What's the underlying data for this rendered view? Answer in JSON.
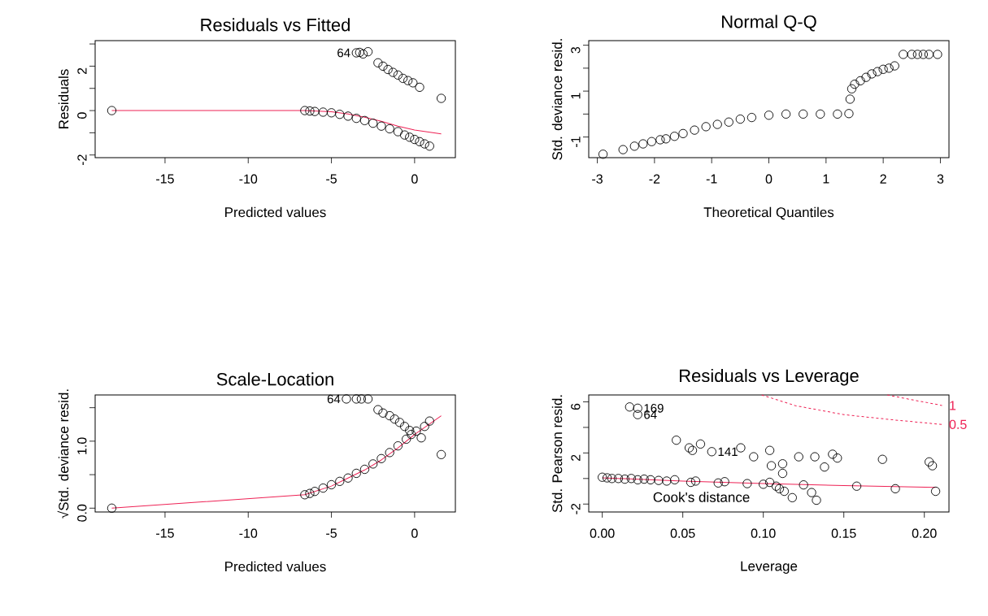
{
  "chart_data": [
    {
      "type": "scatter",
      "title": "Residuals vs Fitted",
      "xlabel": "Predicted values",
      "ylabel": "Residuals",
      "xlim": [
        -19.2,
        2.45
      ],
      "ylim": [
        -2.12,
        3.15
      ],
      "xticks": [
        -15,
        -10,
        -5,
        0
      ],
      "yticks": [
        -2,
        {
          "value": -1,
          "label": null
        },
        0,
        {
          "value": 1,
          "label": null
        },
        2,
        {
          "value": 3,
          "label": null
        }
      ],
      "series": [
        {
          "marker": "circle",
          "color": "#000000",
          "x": [
            -18.2,
            -6.6,
            -6.3,
            -6,
            -5.5,
            -5,
            -4.5,
            -4,
            -3.5,
            -3,
            -2.5,
            -2,
            -1.5,
            -1,
            -0.6,
            -0.3,
            0,
            0.3,
            0.6,
            0.9,
            -3.5,
            -3.3,
            -3.1,
            -2.8,
            -2.2,
            -1.9,
            -1.6,
            -1.3,
            -1,
            -0.7,
            -0.4,
            -0.1,
            0.3,
            1.6
          ],
          "values": [
            0,
            0,
            -0.02,
            -0.04,
            -0.07,
            -0.1,
            -0.17,
            -0.25,
            -0.35,
            -0.45,
            -0.57,
            -0.7,
            -0.82,
            -0.95,
            -1.1,
            -1.2,
            -1.3,
            -1.4,
            -1.5,
            -1.6,
            2.6,
            2.62,
            2.55,
            2.65,
            2.15,
            2.0,
            1.85,
            1.72,
            1.6,
            1.45,
            1.35,
            1.25,
            1.05,
            0.55
          ]
        },
        {
          "type": "line",
          "color": "#ee2255",
          "x": [
            -18.2,
            -6.6,
            -5,
            -4,
            -3,
            -2,
            -1,
            0,
            1.6
          ],
          "values": [
            0,
            0,
            -0.05,
            -0.15,
            -0.3,
            -0.48,
            -0.7,
            -0.88,
            -1.05
          ]
        }
      ],
      "annotations": [
        {
          "text": "64",
          "x": -3.5,
          "y": 2.6
        }
      ]
    },
    {
      "type": "scatter",
      "title": "Normal Q-Q",
      "xlabel": "Theoretical Quantiles",
      "ylabel": "Std. deviance resid.",
      "xlim": [
        -3.15,
        3.15
      ],
      "ylim": [
        -1.9,
        3.2
      ],
      "xticks": [
        -3,
        -2,
        -1,
        0,
        1,
        2,
        3
      ],
      "yticks": [
        -1,
        {
          "value": 0,
          "label": null
        },
        1,
        {
          "value": 2,
          "label": null
        },
        3
      ],
      "series": [
        {
          "marker": "circle",
          "color": "#000000",
          "x": [
            -2.9,
            -2.55,
            -2.35,
            -2.2,
            -2.05,
            -1.9,
            -1.8,
            -1.65,
            -1.5,
            -1.3,
            -1.1,
            -0.9,
            -0.7,
            -0.5,
            -0.3,
            0,
            0.3,
            0.6,
            0.9,
            1.2,
            1.4,
            1.42,
            1.45,
            1.5,
            1.6,
            1.7,
            1.8,
            1.9,
            2.0,
            2.1,
            2.2,
            2.35,
            2.5,
            2.6,
            2.7,
            2.8,
            2.95
          ],
          "values": [
            -1.75,
            -1.55,
            -1.4,
            -1.3,
            -1.2,
            -1.12,
            -1.08,
            -0.97,
            -0.85,
            -0.7,
            -0.55,
            -0.45,
            -0.35,
            -0.22,
            -0.15,
            -0.05,
            0,
            0,
            0,
            0,
            0.02,
            0.65,
            1.1,
            1.3,
            1.45,
            1.6,
            1.75,
            1.85,
            1.95,
            2.0,
            2.1,
            2.6,
            2.6,
            2.6,
            2.6,
            2.6,
            2.6
          ]
        }
      ]
    },
    {
      "type": "scatter",
      "title": "Scale-Location",
      "xlabel": "Predicted values",
      "ylabel": "√Std. deviance resid.",
      "xlim": [
        -19.2,
        2.45
      ],
      "ylim": [
        -0.057,
        1.69
      ],
      "xticks": [
        -15,
        -10,
        -5,
        0
      ],
      "yticks": [
        {
          "value": 0,
          "label": "0.0"
        },
        {
          "value": 0.5,
          "label": null
        },
        {
          "value": 1,
          "label": "1.0"
        },
        {
          "value": 1.5,
          "label": null
        }
      ],
      "series": [
        {
          "marker": "circle",
          "color": "#000000",
          "x": [
            -18.2,
            -6.6,
            -6.3,
            -6,
            -5.5,
            -5,
            -4.5,
            -4,
            -3.5,
            -3,
            -2.5,
            -2,
            -1.5,
            -1,
            -0.5,
            -0.2,
            0.1,
            0.4,
            0.6,
            0.9,
            -4.1,
            -3.5,
            -3.2,
            -2.8,
            -2.2,
            -1.9,
            -1.5,
            -1.2,
            -0.9,
            -0.6,
            -0.3,
            1.6
          ],
          "values": [
            0,
            0.2,
            0.22,
            0.25,
            0.3,
            0.35,
            0.4,
            0.45,
            0.52,
            0.58,
            0.66,
            0.74,
            0.83,
            0.93,
            1.03,
            1.1,
            1.15,
            1.05,
            1.22,
            1.3,
            1.63,
            1.63,
            1.63,
            1.63,
            1.47,
            1.42,
            1.38,
            1.33,
            1.28,
            1.22,
            1.16,
            0.8
          ]
        },
        {
          "type": "line",
          "color": "#ee2255",
          "x": [
            -18.2,
            -6.6,
            -5,
            -4,
            -3,
            -2,
            -1,
            0,
            1.6
          ],
          "values": [
            0,
            0.2,
            0.33,
            0.45,
            0.57,
            0.72,
            0.9,
            1.1,
            1.38
          ]
        }
      ],
      "annotations": [
        {
          "text": "64",
          "x": -4.1,
          "y": 1.63
        }
      ]
    },
    {
      "type": "scatter",
      "title": "Residuals vs Leverage",
      "xlabel": "Leverage",
      "ylabel": "Std. Pearson resid.",
      "xlim": [
        -0.0084,
        0.2153
      ],
      "ylim": [
        -2.62,
        6.54
      ],
      "xticks": [
        {
          "value": 0,
          "label": "0.00"
        },
        0.05,
        {
          "value": 0.1,
          "label": "0.10"
        },
        0.15,
        {
          "value": 0.2,
          "label": "0.20"
        }
      ],
      "yticks": [
        -2,
        {
          "value": 0,
          "label": null
        },
        2,
        {
          "value": 4,
          "label": null
        },
        6
      ],
      "series": [
        {
          "marker": "circle",
          "color": "#000000",
          "x": [
            0.017,
            0.022,
            0.022,
            0.046,
            0.054,
            0.056,
            0.061,
            0.068,
            0.086,
            0.094,
            0.104,
            0.105,
            0.112,
            0.112,
            0.122,
            0.132,
            0.138,
            0.143,
            0.146,
            0.174,
            0.203,
            0.205,
            0,
            0.003,
            0.006,
            0.01,
            0.014,
            0.018,
            0.022,
            0.026,
            0.03,
            0.035,
            0.04,
            0.045,
            0.055,
            0.058,
            0.072,
            0.076,
            0.09,
            0.1,
            0.104,
            0.108,
            0.11,
            0.113,
            0.118,
            0.125,
            0.13,
            0.133,
            0.158,
            0.182,
            0.207
          ],
          "values": [
            5.6,
            5.5,
            5.0,
            3.0,
            2.4,
            2.2,
            2.7,
            2.1,
            2.4,
            1.7,
            2.2,
            1.0,
            1.15,
            0.4,
            1.7,
            1.7,
            0.9,
            1.9,
            1.6,
            1.5,
            1.3,
            1.0,
            0.1,
            0.05,
            0,
            0,
            -0.05,
            0,
            -0.1,
            -0.05,
            -0.1,
            -0.15,
            -0.2,
            -0.1,
            -0.3,
            -0.2,
            -0.35,
            -0.25,
            -0.4,
            -0.45,
            -0.3,
            -0.6,
            -0.8,
            -1.0,
            -1.5,
            -0.5,
            -1.1,
            -1.7,
            -0.6,
            -0.8,
            -1.0
          ]
        },
        {
          "type": "line",
          "color": "#ee2255",
          "x": [
            0,
            0.05,
            0.1,
            0.15,
            0.207
          ],
          "values": [
            0.05,
            -0.2,
            -0.4,
            -0.55,
            -0.7
          ]
        },
        {
          "type": "line",
          "name": "1",
          "color": "#ee2255",
          "line_style": "dashed",
          "x": [
            0.177,
            0.195,
            0.211
          ],
          "values": [
            6.54,
            6.1,
            5.72
          ]
        },
        {
          "type": "line",
          "name": "0.5",
          "color": "#ee2255",
          "line_style": "dashed",
          "x": [
            0.099,
            0.12,
            0.15,
            0.18,
            0.211
          ],
          "values": [
            6.54,
            5.7,
            5.0,
            4.6,
            4.23
          ]
        }
      ],
      "annotations": [
        {
          "text": "169",
          "x": 0.022,
          "y": 5.5
        },
        {
          "text": "64",
          "x": 0.022,
          "y": 5.0
        },
        {
          "text": "141",
          "x": 0.068,
          "y": 2.1
        },
        "Cook's distance"
      ]
    }
  ]
}
